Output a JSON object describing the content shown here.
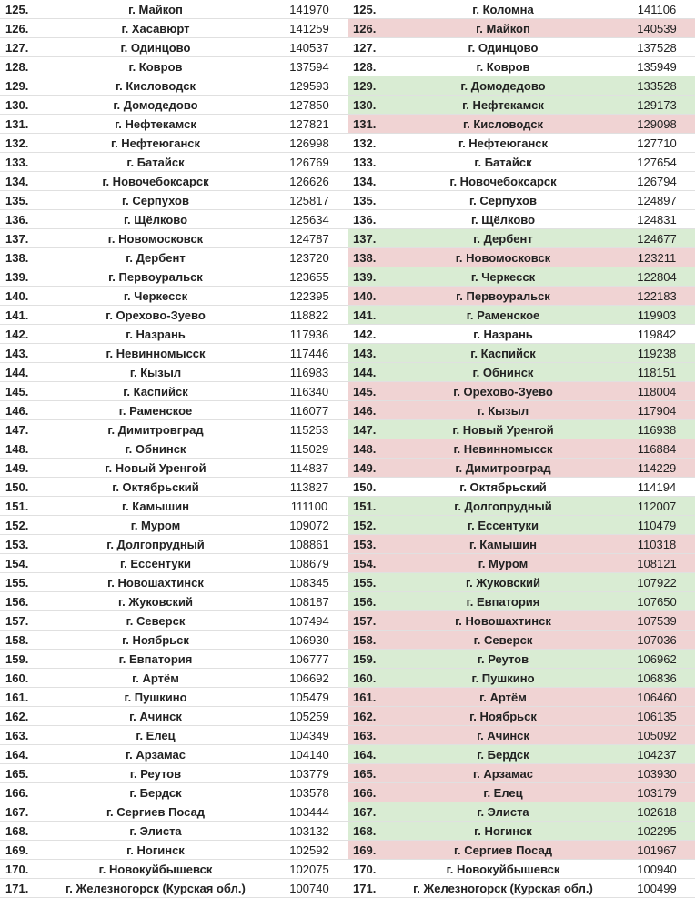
{
  "left": [
    {
      "rank": "125.",
      "city": "г. Майкоп",
      "pop": "141970"
    },
    {
      "rank": "126.",
      "city": "г. Хасавюрт",
      "pop": "141259"
    },
    {
      "rank": "127.",
      "city": "г. Одинцово",
      "pop": "140537"
    },
    {
      "rank": "128.",
      "city": "г. Ковров",
      "pop": "137594"
    },
    {
      "rank": "129.",
      "city": "г. Кисловодск",
      "pop": "129593"
    },
    {
      "rank": "130.",
      "city": "г. Домодедово",
      "pop": "127850"
    },
    {
      "rank": "131.",
      "city": "г. Нефтекамск",
      "pop": "127821"
    },
    {
      "rank": "132.",
      "city": "г. Нефтеюганск",
      "pop": "126998"
    },
    {
      "rank": "133.",
      "city": "г. Батайск",
      "pop": "126769"
    },
    {
      "rank": "134.",
      "city": "г. Новочебоксарск",
      "pop": "126626"
    },
    {
      "rank": "135.",
      "city": "г. Серпухов",
      "pop": "125817"
    },
    {
      "rank": "136.",
      "city": "г. Щёлково",
      "pop": "125634"
    },
    {
      "rank": "137.",
      "city": "г. Новомосковск",
      "pop": "124787"
    },
    {
      "rank": "138.",
      "city": "г. Дербент",
      "pop": "123720"
    },
    {
      "rank": "139.",
      "city": "г. Первоуральск",
      "pop": "123655"
    },
    {
      "rank": "140.",
      "city": "г. Черкесск",
      "pop": "122395"
    },
    {
      "rank": "141.",
      "city": "г. Орехово-Зуево",
      "pop": "118822"
    },
    {
      "rank": "142.",
      "city": "г. Назрань",
      "pop": "117936"
    },
    {
      "rank": "143.",
      "city": "г. Невинномысск",
      "pop": "117446"
    },
    {
      "rank": "144.",
      "city": "г. Кызыл",
      "pop": "116983"
    },
    {
      "rank": "145.",
      "city": "г. Каспийск",
      "pop": "116340"
    },
    {
      "rank": "146.",
      "city": "г. Раменское",
      "pop": "116077"
    },
    {
      "rank": "147.",
      "city": "г. Димитровград",
      "pop": "115253"
    },
    {
      "rank": "148.",
      "city": "г. Обнинск",
      "pop": "115029"
    },
    {
      "rank": "149.",
      "city": "г. Новый Уренгой",
      "pop": "114837"
    },
    {
      "rank": "150.",
      "city": "г. Октябрьский",
      "pop": "113827"
    },
    {
      "rank": "151.",
      "city": "г. Камышин",
      "pop": "111100"
    },
    {
      "rank": "152.",
      "city": "г. Муром",
      "pop": "109072"
    },
    {
      "rank": "153.",
      "city": "г. Долгопрудный",
      "pop": "108861"
    },
    {
      "rank": "154.",
      "city": "г. Ессентуки",
      "pop": "108679"
    },
    {
      "rank": "155.",
      "city": "г. Новошахтинск",
      "pop": "108345"
    },
    {
      "rank": "156.",
      "city": "г. Жуковский",
      "pop": "108187"
    },
    {
      "rank": "157.",
      "city": "г. Северск",
      "pop": "107494"
    },
    {
      "rank": "158.",
      "city": "г. Ноябрьск",
      "pop": "106930"
    },
    {
      "rank": "159.",
      "city": "г. Евпатория",
      "pop": "106777"
    },
    {
      "rank": "160.",
      "city": "г. Артём",
      "pop": "106692"
    },
    {
      "rank": "161.",
      "city": "г. Пушкино",
      "pop": "105479"
    },
    {
      "rank": "162.",
      "city": "г. Ачинск",
      "pop": "105259"
    },
    {
      "rank": "163.",
      "city": "г. Елец",
      "pop": "104349"
    },
    {
      "rank": "164.",
      "city": "г. Арзамас",
      "pop": "104140"
    },
    {
      "rank": "165.",
      "city": "г. Реутов",
      "pop": "103779"
    },
    {
      "rank": "166.",
      "city": "г. Бердск",
      "pop": "103578"
    },
    {
      "rank": "167.",
      "city": "г. Сергиев Посад",
      "pop": "103444"
    },
    {
      "rank": "168.",
      "city": "г. Элиста",
      "pop": "103132"
    },
    {
      "rank": "169.",
      "city": "г. Ногинск",
      "pop": "102592"
    },
    {
      "rank": "170.",
      "city": "г. Новокуйбышевск",
      "pop": "102075"
    },
    {
      "rank": "171.",
      "city": "г. Железногорск (Курская обл.)",
      "pop": "100740"
    }
  ],
  "right": [
    {
      "rank": "125.",
      "city": "г. Коломна",
      "pop": "141106",
      "hl": "none"
    },
    {
      "rank": "126.",
      "city": "г. Майкоп",
      "pop": "140539",
      "hl": "pink"
    },
    {
      "rank": "127.",
      "city": "г. Одинцово",
      "pop": "137528",
      "hl": "none"
    },
    {
      "rank": "128.",
      "city": "г. Ковров",
      "pop": "135949",
      "hl": "none"
    },
    {
      "rank": "129.",
      "city": "г. Домодедово",
      "pop": "133528",
      "hl": "green"
    },
    {
      "rank": "130.",
      "city": "г. Нефтекамск",
      "pop": "129173",
      "hl": "green"
    },
    {
      "rank": "131.",
      "city": "г. Кисловодск",
      "pop": "129098",
      "hl": "pink"
    },
    {
      "rank": "132.",
      "city": "г. Нефтеюганск",
      "pop": "127710",
      "hl": "none"
    },
    {
      "rank": "133.",
      "city": "г. Батайск",
      "pop": "127654",
      "hl": "none"
    },
    {
      "rank": "134.",
      "city": "г. Новочебоксарск",
      "pop": "126794",
      "hl": "none"
    },
    {
      "rank": "135.",
      "city": "г. Серпухов",
      "pop": "124897",
      "hl": "none"
    },
    {
      "rank": "136.",
      "city": "г. Щёлково",
      "pop": "124831",
      "hl": "none"
    },
    {
      "rank": "137.",
      "city": "г. Дербент",
      "pop": "124677",
      "hl": "green"
    },
    {
      "rank": "138.",
      "city": "г. Новомосковск",
      "pop": "123211",
      "hl": "pink"
    },
    {
      "rank": "139.",
      "city": "г. Черкесск",
      "pop": "122804",
      "hl": "green"
    },
    {
      "rank": "140.",
      "city": "г. Первоуральск",
      "pop": "122183",
      "hl": "pink"
    },
    {
      "rank": "141.",
      "city": "г. Раменское",
      "pop": "119903",
      "hl": "green"
    },
    {
      "rank": "142.",
      "city": "г. Назрань",
      "pop": "119842",
      "hl": "none"
    },
    {
      "rank": "143.",
      "city": "г. Каспийск",
      "pop": "119238",
      "hl": "green"
    },
    {
      "rank": "144.",
      "city": "г. Обнинск",
      "pop": "118151",
      "hl": "green"
    },
    {
      "rank": "145.",
      "city": "г. Орехово-Зуево",
      "pop": "118004",
      "hl": "pink"
    },
    {
      "rank": "146.",
      "city": "г. Кызыл",
      "pop": "117904",
      "hl": "pink"
    },
    {
      "rank": "147.",
      "city": "г. Новый Уренгой",
      "pop": "116938",
      "hl": "green"
    },
    {
      "rank": "148.",
      "city": "г. Невинномысск",
      "pop": "116884",
      "hl": "pink"
    },
    {
      "rank": "149.",
      "city": "г. Димитровград",
      "pop": "114229",
      "hl": "pink"
    },
    {
      "rank": "150.",
      "city": "г. Октябрьский",
      "pop": "114194",
      "hl": "none"
    },
    {
      "rank": "151.",
      "city": "г. Долгопрудный",
      "pop": "112007",
      "hl": "green"
    },
    {
      "rank": "152.",
      "city": "г. Ессентуки",
      "pop": "110479",
      "hl": "green"
    },
    {
      "rank": "153.",
      "city": "г. Камышин",
      "pop": "110318",
      "hl": "pink"
    },
    {
      "rank": "154.",
      "city": "г. Муром",
      "pop": "108121",
      "hl": "pink"
    },
    {
      "rank": "155.",
      "city": "г. Жуковский",
      "pop": "107922",
      "hl": "green"
    },
    {
      "rank": "156.",
      "city": "г. Евпатория",
      "pop": "107650",
      "hl": "green"
    },
    {
      "rank": "157.",
      "city": "г. Новошахтинск",
      "pop": "107539",
      "hl": "pink"
    },
    {
      "rank": "158.",
      "city": "г. Северск",
      "pop": "107036",
      "hl": "pink"
    },
    {
      "rank": "159.",
      "city": "г. Реутов",
      "pop": "106962",
      "hl": "green"
    },
    {
      "rank": "160.",
      "city": "г. Пушкино",
      "pop": "106836",
      "hl": "green"
    },
    {
      "rank": "161.",
      "city": "г. Артём",
      "pop": "106460",
      "hl": "pink"
    },
    {
      "rank": "162.",
      "city": "г. Ноябрьск",
      "pop": "106135",
      "hl": "pink"
    },
    {
      "rank": "163.",
      "city": "г. Ачинск",
      "pop": "105092",
      "hl": "pink"
    },
    {
      "rank": "164.",
      "city": "г. Бердск",
      "pop": "104237",
      "hl": "green"
    },
    {
      "rank": "165.",
      "city": "г. Арзамас",
      "pop": "103930",
      "hl": "pink"
    },
    {
      "rank": "166.",
      "city": "г. Елец",
      "pop": "103179",
      "hl": "pink"
    },
    {
      "rank": "167.",
      "city": "г. Элиста",
      "pop": "102618",
      "hl": "green"
    },
    {
      "rank": "168.",
      "city": "г. Ногинск",
      "pop": "102295",
      "hl": "green"
    },
    {
      "rank": "169.",
      "city": "г. Сергиев Посад",
      "pop": "101967",
      "hl": "pink"
    },
    {
      "rank": "170.",
      "city": "г. Новокуйбышевск",
      "pop": "100940",
      "hl": "none"
    },
    {
      "rank": "171.",
      "city": "г. Железногорск (Курская обл.)",
      "pop": "100499",
      "hl": "none"
    }
  ]
}
